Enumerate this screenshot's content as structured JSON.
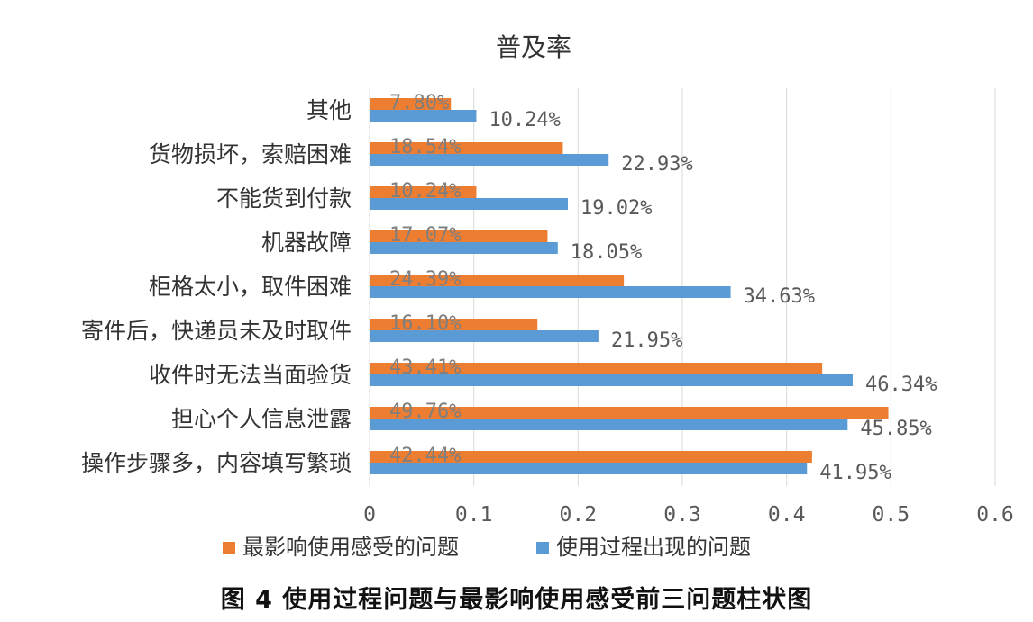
{
  "chart_data": {
    "type": "bar",
    "orientation": "horizontal",
    "title": "普及率",
    "categories": [
      "其他",
      "货物损坏，索赔困难",
      "不能货到付款",
      "机器故障",
      "柜格太小，取件困难",
      "寄件后，快递员未及时取件",
      "收件时无法当面验货",
      "担心个人信息泄露",
      "操作步骤多，内容填写繁琐"
    ],
    "series": [
      {
        "name": "最影响使用感受的问题",
        "color": "#ED7D31",
        "values": [
          0.078,
          0.1854,
          0.1024,
          0.1707,
          0.2439,
          0.161,
          0.4341,
          0.4976,
          0.4244
        ],
        "labels": [
          "7.80%",
          "18.54%",
          "10.24%",
          "17.07%",
          "24.39%",
          "16.10%",
          "43.41%",
          "49.76%",
          "42.44%"
        ]
      },
      {
        "name": "使用过程出现的问题",
        "color": "#5B9BD5",
        "values": [
          0.1024,
          0.2293,
          0.1902,
          0.1805,
          0.3463,
          0.2195,
          0.4634,
          0.4585,
          0.4195
        ],
        "labels": [
          "10.24%",
          "22.93%",
          "19.02%",
          "18.05%",
          "34.63%",
          "21.95%",
          "46.34%",
          "45.85%",
          "41.95%"
        ]
      }
    ],
    "xlim": [
      0,
      0.6
    ],
    "xticks": [
      "0",
      "0.1",
      "0.2",
      "0.3",
      "0.4",
      "0.5",
      "0.6"
    ],
    "grid": "vertical",
    "legend_position": "bottom"
  },
  "caption": "图 4  使用过程问题与最影响使用感受前三问题柱状图"
}
